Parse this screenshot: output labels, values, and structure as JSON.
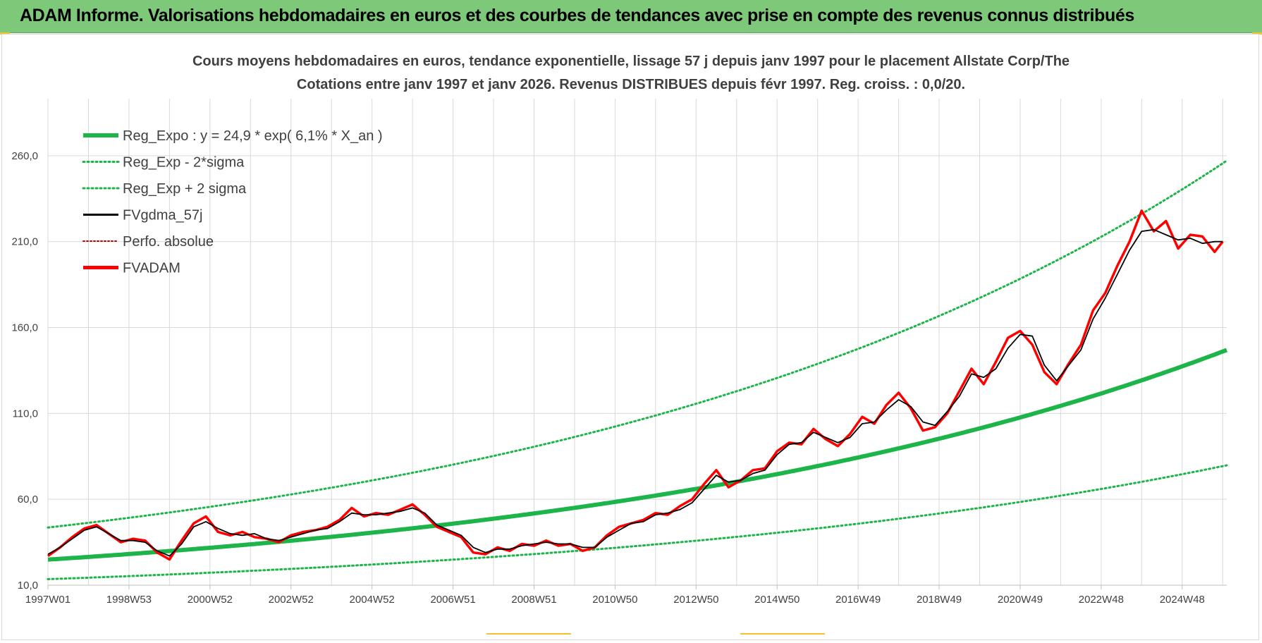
{
  "banner": {
    "title": "ADAM Informe. Valorisations hebdomadaires en euros et des courbes de tendances avec prise en compte des revenus connus distribués"
  },
  "colors": {
    "banner_bg": "#7ec87a",
    "green": "#1db54a",
    "red": "#ff0000",
    "black": "#000000",
    "grid": "#d9d9d9"
  },
  "chart_data": {
    "type": "line",
    "title": "Cours moyens hebdomadaires en euros, tendance exponentielle, lissage 57 j depuis janv 1997 pour le placement Allstate Corp/The",
    "subtitle": "Cotations entre janv 1997 et janv 2026. Revenus DISTRIBUES depuis févr 1997. Reg. croiss. : 0,0/20.",
    "ylim": [
      10,
      285
    ],
    "yticks": [
      "10,0",
      "60,0",
      "110,0",
      "160,0",
      "210,0",
      "260,0"
    ],
    "ytick_values": [
      10,
      60,
      110,
      160,
      210,
      260
    ],
    "xlim": [
      1997.0,
      2026.1
    ],
    "xticks": [
      "1997W01",
      "1998W53",
      "2000W52",
      "2002W52",
      "2004W52",
      "2006W51",
      "2008W51",
      "2010W50",
      "2012W50",
      "2014W50",
      "2016W49",
      "2018W49",
      "2020W49",
      "2022W48",
      "2024W48"
    ],
    "xtick_values": [
      1997.0,
      1999.0,
      2001.0,
      2003.0,
      2005.0,
      2007.0,
      2009.0,
      2011.0,
      2013.0,
      2015.0,
      2017.0,
      2019.0,
      2021.0,
      2023.0,
      2025.0
    ],
    "grid": true,
    "legend_position": "top-left",
    "regression": {
      "a": 24.9,
      "rate": 0.061,
      "sigma_upper_factor": 1.75,
      "sigma_lower_factor": 0.543
    },
    "series": [
      {
        "name": "Reg_Expo : y = 24,9 * exp( 6,1% *  X_an )",
        "style": "solid-thick",
        "color": "#1db54a"
      },
      {
        "name": "Reg_Exp - 2*sigma",
        "style": "dotted",
        "color": "#1db54a"
      },
      {
        "name": "Reg_Exp + 2 sigma",
        "style": "dotted",
        "color": "#1db54a"
      },
      {
        "name": "FVgdma_57j",
        "style": "solid-thin",
        "color": "#000000",
        "x": [
          1997.0,
          1997.3,
          1997.6,
          1997.9,
          1998.2,
          1998.5,
          1998.8,
          1999.1,
          1999.4,
          1999.7,
          2000.0,
          2000.3,
          2000.6,
          2000.9,
          2001.2,
          2001.5,
          2001.8,
          2002.1,
          2002.4,
          2002.7,
          2003.0,
          2003.3,
          2003.6,
          2003.9,
          2004.2,
          2004.5,
          2004.8,
          2005.1,
          2005.4,
          2005.7,
          2006.0,
          2006.3,
          2006.6,
          2006.9,
          2007.2,
          2007.5,
          2007.8,
          2008.1,
          2008.4,
          2008.7,
          2009.0,
          2009.3,
          2009.6,
          2009.9,
          2010.2,
          2010.5,
          2010.8,
          2011.1,
          2011.4,
          2011.7,
          2012.0,
          2012.3,
          2012.6,
          2012.9,
          2013.2,
          2013.5,
          2013.8,
          2014.1,
          2014.4,
          2014.7,
          2015.0,
          2015.3,
          2015.6,
          2015.9,
          2016.2,
          2016.5,
          2016.8,
          2017.1,
          2017.4,
          2017.7,
          2018.0,
          2018.3,
          2018.6,
          2018.9,
          2019.2,
          2019.5,
          2019.8,
          2020.1,
          2020.4,
          2020.7,
          2021.0,
          2021.3,
          2021.6,
          2021.9,
          2022.2,
          2022.5,
          2022.8,
          2023.1,
          2023.4,
          2023.7,
          2024.0,
          2024.3,
          2024.6,
          2024.9,
          2025.2,
          2025.5,
          2025.8,
          2026.0
        ],
        "y": [
          28,
          32,
          37,
          42,
          44,
          40,
          36,
          36,
          35,
          30,
          27,
          34,
          44,
          47,
          43,
          40,
          39,
          40,
          37,
          36,
          38,
          40,
          42,
          43,
          47,
          52,
          51,
          51,
          52,
          53,
          55,
          52,
          45,
          42,
          39,
          32,
          29,
          31,
          31,
          33,
          34,
          35,
          34,
          34,
          32,
          32,
          38,
          42,
          46,
          47,
          51,
          52,
          54,
          58,
          66,
          74,
          70,
          71,
          75,
          77,
          86,
          92,
          93,
          99,
          96,
          93,
          96,
          104,
          105,
          112,
          118,
          114,
          105,
          103,
          111,
          120,
          133,
          131,
          136,
          148,
          156,
          155,
          138,
          129,
          138,
          147,
          165,
          177,
          191,
          205,
          216,
          217,
          214,
          211,
          212,
          209,
          210,
          210
        ]
      },
      {
        "name": "Perfo. absolue",
        "style": "dotted",
        "color": "#c00000"
      },
      {
        "name": "FVADAM",
        "style": "solid-thick",
        "color": "#ff0000",
        "x": [
          1997.0,
          1997.3,
          1997.6,
          1997.9,
          1998.2,
          1998.5,
          1998.8,
          1999.1,
          1999.4,
          1999.7,
          2000.0,
          2000.3,
          2000.6,
          2000.9,
          2001.2,
          2001.5,
          2001.8,
          2002.1,
          2002.4,
          2002.7,
          2003.0,
          2003.3,
          2003.6,
          2003.9,
          2004.2,
          2004.5,
          2004.8,
          2005.1,
          2005.4,
          2005.7,
          2006.0,
          2006.3,
          2006.6,
          2006.9,
          2007.2,
          2007.5,
          2007.8,
          2008.1,
          2008.4,
          2008.7,
          2009.0,
          2009.3,
          2009.6,
          2009.9,
          2010.2,
          2010.5,
          2010.8,
          2011.1,
          2011.4,
          2011.7,
          2012.0,
          2012.3,
          2012.6,
          2012.9,
          2013.2,
          2013.5,
          2013.8,
          2014.1,
          2014.4,
          2014.7,
          2015.0,
          2015.3,
          2015.6,
          2015.9,
          2016.2,
          2016.5,
          2016.8,
          2017.1,
          2017.4,
          2017.7,
          2018.0,
          2018.3,
          2018.6,
          2018.9,
          2019.2,
          2019.5,
          2019.8,
          2020.1,
          2020.4,
          2020.7,
          2021.0,
          2021.3,
          2021.6,
          2021.9,
          2022.2,
          2022.5,
          2022.8,
          2023.1,
          2023.4,
          2023.7,
          2024.0,
          2024.3,
          2024.6,
          2024.9,
          2025.2,
          2025.5,
          2025.8,
          2026.0
        ],
        "y": [
          27,
          32,
          38,
          43,
          45,
          40,
          35,
          37,
          36,
          29,
          25,
          36,
          46,
          50,
          41,
          39,
          41,
          38,
          37,
          35,
          39,
          41,
          42,
          44,
          48,
          55,
          50,
          52,
          51,
          54,
          57,
          51,
          44,
          41,
          38,
          29,
          28,
          32,
          30,
          34,
          33,
          36,
          33,
          34,
          30,
          32,
          39,
          44,
          46,
          48,
          52,
          51,
          56,
          60,
          69,
          77,
          67,
          71,
          77,
          78,
          88,
          93,
          92,
          101,
          95,
          91,
          98,
          108,
          104,
          115,
          122,
          113,
          100,
          102,
          110,
          123,
          136,
          127,
          140,
          154,
          158,
          150,
          134,
          127,
          139,
          150,
          170,
          180,
          196,
          210,
          228,
          216,
          222,
          206,
          214,
          213,
          204,
          210
        ]
      }
    ]
  }
}
